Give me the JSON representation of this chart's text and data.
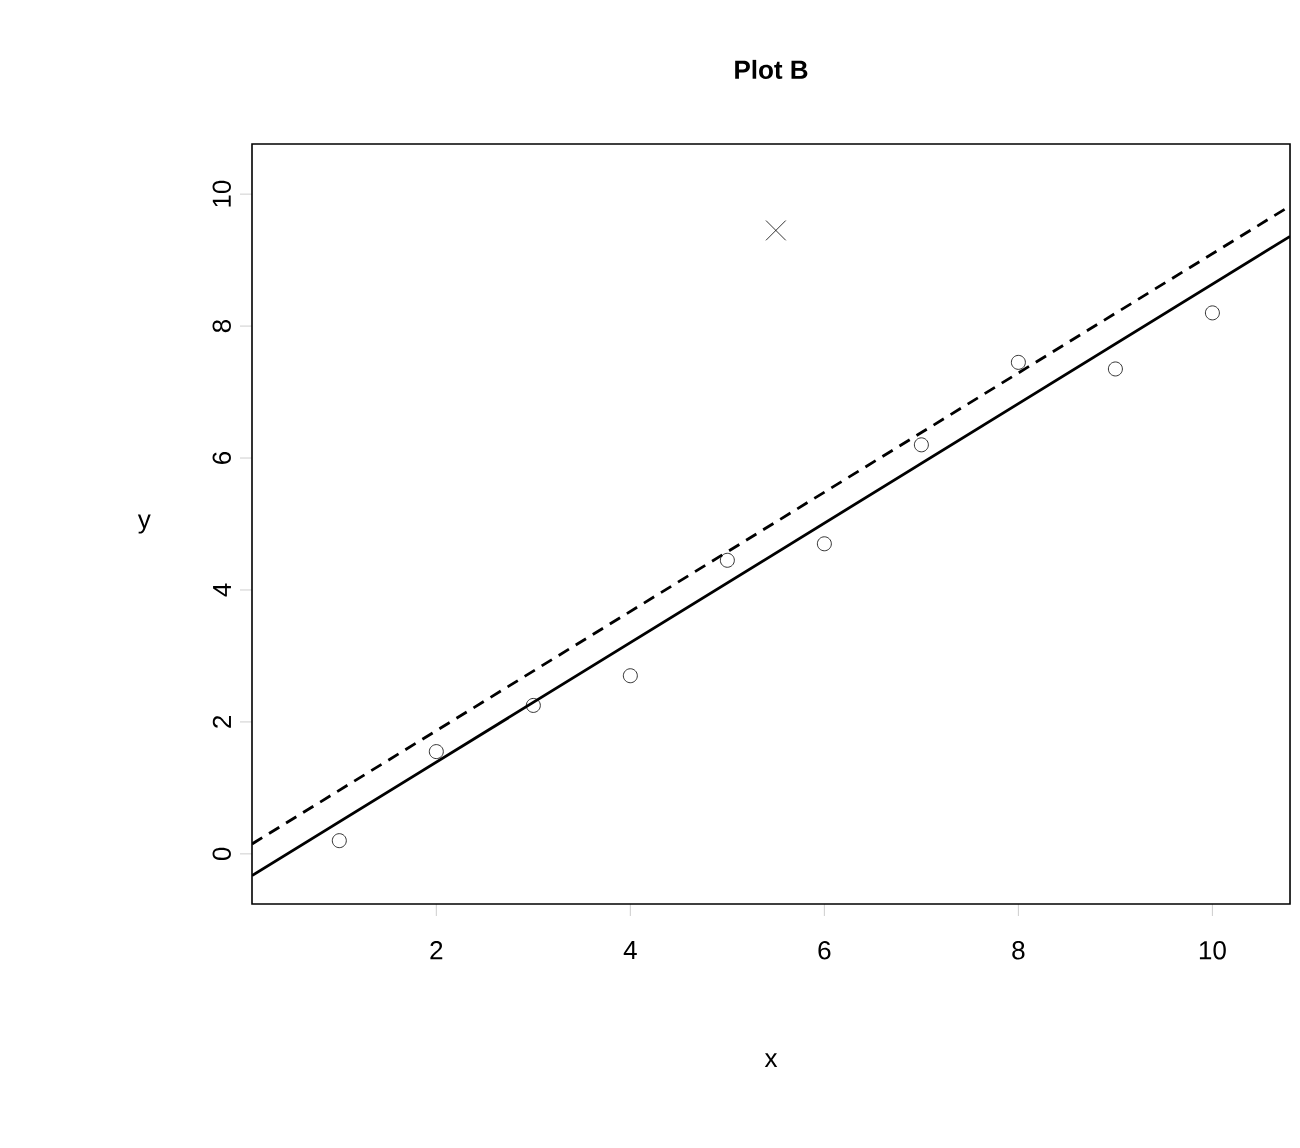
{
  "chart_data": {
    "type": "scatter",
    "title": "Plot B",
    "xlabel": "x",
    "ylabel": "y",
    "xlim": [
      0.1,
      10.8
    ],
    "ylim": [
      -0.76,
      10.76
    ],
    "xticks": [
      2,
      4,
      6,
      8,
      10
    ],
    "yticks": [
      0,
      2,
      4,
      6,
      8,
      10
    ],
    "grid": false,
    "series": [
      {
        "marker": "circle",
        "color": "#000000",
        "x": [
          1,
          2,
          3,
          4,
          5,
          6,
          7,
          8,
          9,
          10
        ],
        "values": [
          0.2,
          1.55,
          2.25,
          2.7,
          4.45,
          4.7,
          6.2,
          7.45,
          7.35,
          8.2
        ]
      },
      {
        "marker": "cross",
        "color": "#000000",
        "x": [
          5.5
        ],
        "values": [
          9.45
        ]
      },
      {
        "type": "line",
        "marker": "none",
        "line_style": "solid",
        "color": "#000000",
        "x": [
          0.1,
          10.8
        ],
        "values": [
          -0.33,
          9.36
        ]
      },
      {
        "type": "line",
        "marker": "none",
        "line_style": "dashed",
        "color": "#000000",
        "x": [
          0.1,
          10.8
        ],
        "values": [
          0.15,
          9.82
        ]
      }
    ]
  }
}
